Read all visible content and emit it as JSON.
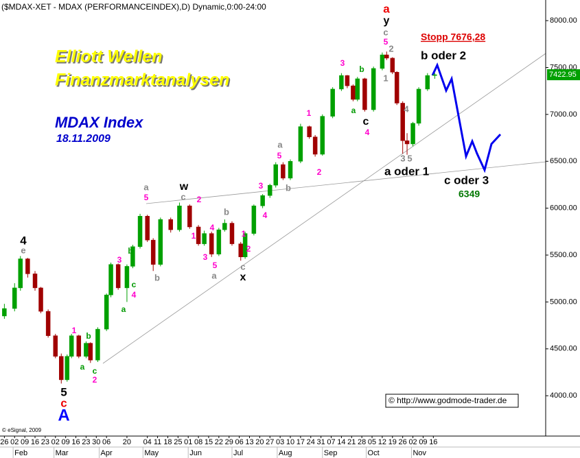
{
  "chart_data": {
    "type": "candlestick",
    "title": "($MDAX-XET - MDAX (PERFORMANCEINDEX),D) Dynamic,0:00-24:00",
    "x": [
      "2009-01-26",
      "2009-02-02",
      "2009-02-06",
      "2009-02-11",
      "2009-02-16",
      "2009-02-20",
      "2009-02-25",
      "2009-03-02",
      "2009-03-06",
      "2009-03-10",
      "2009-03-13",
      "2009-03-18",
      "2009-03-23",
      "2009-03-26",
      "2009-03-31",
      "2009-04-06",
      "2009-04-09",
      "2009-04-14",
      "2009-04-20",
      "2009-04-24",
      "2009-04-29",
      "2009-05-04",
      "2009-05-08",
      "2009-05-13",
      "2009-05-20",
      "2009-05-26",
      "2009-06-02",
      "2009-06-08",
      "2009-06-12",
      "2009-06-17",
      "2009-06-22",
      "2009-06-26",
      "2009-07-01",
      "2009-07-07",
      "2009-07-10",
      "2009-07-16",
      "2009-07-22",
      "2009-07-27",
      "2009-07-31",
      "2009-08-05",
      "2009-08-10",
      "2009-08-17",
      "2009-08-23",
      "2009-08-27",
      "2009-09-01",
      "2009-09-08",
      "2009-09-14",
      "2009-09-18",
      "2009-09-22",
      "2009-09-25",
      "2009-09-30",
      "2009-10-06",
      "2009-10-12",
      "2009-10-15",
      "2009-10-19",
      "2009-10-22",
      "2009-10-26",
      "2009-10-29",
      "2009-11-02",
      "2009-11-06",
      "2009-11-12",
      "2009-11-17"
    ],
    "open": [
      4850,
      4930,
      5150,
      5460,
      5300,
      5150,
      4900,
      4640,
      4420,
      4170,
      4420,
      4640,
      4420,
      4560,
      4380,
      4710,
      5075,
      5400,
      5150,
      5380,
      5590,
      5915,
      5660,
      5400,
      5880,
      5770,
      6025,
      5800,
      5620,
      5730,
      5510,
      5770,
      5840,
      5620,
      5480,
      5730,
      6025,
      6135,
      6245,
      6465,
      6320,
      6500,
      6870,
      6760,
      6575,
      6980,
      7270,
      7415,
      7305,
      7160,
      7380,
      7050,
      7490,
      7635,
      7600,
      7450,
      7120,
      6720,
      6685,
      6905,
      7270,
      7415
    ],
    "high": [
      4980,
      5200,
      5490,
      5470,
      5330,
      5160,
      4920,
      4660,
      4450,
      4440,
      4660,
      4650,
      4580,
      4570,
      4730,
      5090,
      5420,
      5410,
      5400,
      5610,
      5940,
      5930,
      5680,
      5900,
      5900,
      6060,
      6040,
      5820,
      5760,
      5750,
      5790,
      5880,
      5860,
      5640,
      5750,
      6040,
      6150,
      6260,
      6490,
      6490,
      6520,
      6900,
      6880,
      6780,
      7000,
      7290,
      7440,
      7420,
      7320,
      7400,
      7390,
      7510,
      7660,
      7670,
      7610,
      7460,
      7140,
      6800,
      6920,
      7290,
      7440,
      7440
    ],
    "low": [
      4820,
      4900,
      5120,
      5260,
      5120,
      4880,
      4620,
      4400,
      4130,
      4150,
      4400,
      4400,
      4400,
      4350,
      4360,
      4690,
      5050,
      5130,
      5000,
      5360,
      5570,
      5640,
      5330,
      5380,
      5740,
      5750,
      5780,
      5600,
      5600,
      5480,
      5490,
      5750,
      5600,
      5440,
      5460,
      5710,
      6000,
      6110,
      6220,
      6300,
      6300,
      6480,
      6740,
      6550,
      6560,
      6960,
      7250,
      7280,
      7140,
      7140,
      7030,
      7030,
      7470,
      7580,
      7430,
      7100,
      6580,
      6570,
      6660,
      6880,
      7250,
      7380
    ],
    "close": [
      4930,
      5150,
      5460,
      5300,
      5150,
      4900,
      4640,
      4420,
      4170,
      4420,
      4640,
      4420,
      4560,
      4380,
      4710,
      5075,
      5400,
      5150,
      5380,
      5590,
      5915,
      5660,
      5400,
      5880,
      5770,
      6025,
      5800,
      5620,
      5730,
      5510,
      5770,
      5840,
      5620,
      5480,
      5730,
      6025,
      6135,
      6245,
      6465,
      6320,
      6500,
      6870,
      6760,
      6575,
      6980,
      7270,
      7415,
      7305,
      7160,
      7380,
      7050,
      7490,
      7635,
      7600,
      7450,
      7120,
      6720,
      6685,
      6905,
      7270,
      7415,
      7422.95
    ],
    "up_color": "#00a000",
    "down_color": "#a00000",
    "xlim": [
      "2009-01-23",
      "2010-02-01"
    ],
    "ylim": [
      3570,
      8220
    ],
    "yticks": [
      {
        "value": 4000,
        "label": "4000.00"
      },
      {
        "value": 4500,
        "label": "4500.00"
      },
      {
        "value": 5000,
        "label": "5000.00"
      },
      {
        "value": 5500,
        "label": "5500.00"
      },
      {
        "value": 6000,
        "label": "6000.00"
      },
      {
        "value": 6500,
        "label": "6500.00"
      },
      {
        "value": 7000,
        "label": "7000.00"
      },
      {
        "value": 7500,
        "label": "7500.00"
      },
      {
        "value": 8000,
        "label": "8000.00"
      }
    ],
    "xticks": [
      {
        "value": "2009-01-26",
        "label": "26"
      },
      {
        "value": "2009-02-02",
        "label": "02"
      },
      {
        "value": "2009-02-09",
        "label": "09"
      },
      {
        "value": "2009-02-16",
        "label": "16"
      },
      {
        "value": "2009-02-23",
        "label": "23"
      },
      {
        "value": "2009-03-02",
        "label": "02"
      },
      {
        "value": "2009-03-09",
        "label": "09"
      },
      {
        "value": "2009-03-16",
        "label": "16"
      },
      {
        "value": "2009-03-23",
        "label": "23"
      },
      {
        "value": "2009-03-30",
        "label": "30"
      },
      {
        "value": "2009-04-06",
        "label": "06"
      },
      {
        "value": "2009-04-20",
        "label": "20"
      },
      {
        "value": "2009-05-04",
        "label": "04"
      },
      {
        "value": "2009-05-11",
        "label": "11"
      },
      {
        "value": "2009-05-18",
        "label": "18"
      },
      {
        "value": "2009-05-25",
        "label": "25"
      },
      {
        "value": "2009-06-01",
        "label": "01"
      },
      {
        "value": "2009-06-08",
        "label": "08"
      },
      {
        "value": "2009-06-15",
        "label": "15"
      },
      {
        "value": "2009-06-22",
        "label": "22"
      },
      {
        "value": "2009-06-29",
        "label": "29"
      },
      {
        "value": "2009-07-06",
        "label": "06"
      },
      {
        "value": "2009-07-13",
        "label": "13"
      },
      {
        "value": "2009-07-20",
        "label": "20"
      },
      {
        "value": "2009-07-27",
        "label": "27"
      },
      {
        "value": "2009-08-03",
        "label": "03"
      },
      {
        "value": "2009-08-10",
        "label": "10"
      },
      {
        "value": "2009-08-17",
        "label": "17"
      },
      {
        "value": "2009-08-24",
        "label": "24"
      },
      {
        "value": "2009-08-31",
        "label": "31"
      },
      {
        "value": "2009-09-07",
        "label": "07"
      },
      {
        "value": "2009-09-14",
        "label": "14"
      },
      {
        "value": "2009-09-21",
        "label": "21"
      },
      {
        "value": "2009-09-28",
        "label": "28"
      },
      {
        "value": "2009-10-05",
        "label": "05"
      },
      {
        "value": "2009-10-12",
        "label": "12"
      },
      {
        "value": "2009-10-19",
        "label": "19"
      },
      {
        "value": "2009-10-26",
        "label": "26"
      },
      {
        "value": "2009-11-02",
        "label": "02"
      },
      {
        "value": "2009-11-09",
        "label": "09"
      },
      {
        "value": "2009-11-16",
        "label": "16"
      }
    ],
    "month_ticks": [
      {
        "value": "2009-02-01",
        "label": "Feb"
      },
      {
        "value": "2009-03-01",
        "label": "Mar"
      },
      {
        "value": "2009-04-01",
        "label": "Apr"
      },
      {
        "value": "2009-05-01",
        "label": "May"
      },
      {
        "value": "2009-06-01",
        "label": "Jun"
      },
      {
        "value": "2009-07-01",
        "label": "Jul"
      },
      {
        "value": "2009-08-01",
        "label": "Aug"
      },
      {
        "value": "2009-09-01",
        "label": "Sep"
      },
      {
        "value": "2009-10-01",
        "label": "Oct"
      },
      {
        "value": "2009-11-01",
        "label": "Nov"
      }
    ],
    "annotations": [
      "Elliott Wellen",
      "Finanzmarktanalysen",
      "MDAX Index",
      "18.11.2009",
      "Stopp 7676,28",
      "b oder 2",
      "a oder 1",
      "c oder 3",
      "6349",
      "© http://www.godmode-trader.de",
      "© eSignal, 2009",
      "4",
      "e",
      "5",
      "c",
      "A",
      "1",
      "b",
      "a",
      "c",
      "2",
      "3",
      "b",
      "c",
      "4",
      "a",
      "a",
      "5",
      "b",
      "w",
      "c",
      "2",
      "1",
      "3",
      "4",
      "5",
      "a",
      "b",
      "1",
      "2",
      "c",
      "x",
      "3",
      "4",
      "5",
      "a",
      "b",
      "1",
      "2",
      "3",
      "b",
      "a",
      "c",
      "4",
      "a",
      "y",
      "c",
      "5",
      "2",
      "1",
      "4",
      "3",
      "5"
    ]
  }
}
